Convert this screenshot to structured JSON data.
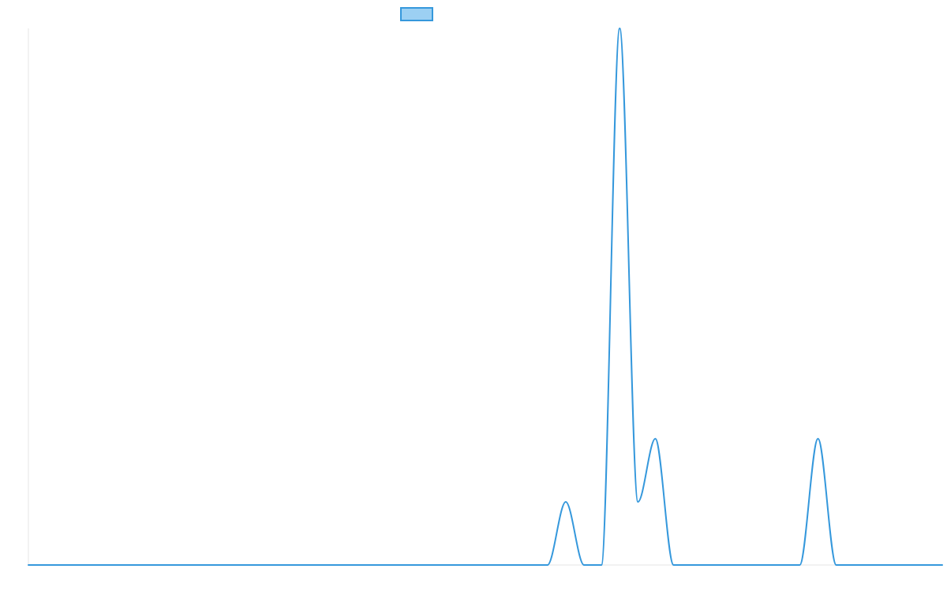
{
  "chart_data": {
    "type": "line",
    "title": "",
    "xlabel": "",
    "ylabel": "",
    "grid": false,
    "legend": {
      "position": "top-center",
      "entries": [
        {
          "label": "",
          "color": "#3598dc",
          "fill": "#9cd0f3"
        }
      ]
    },
    "xlim": [
      0,
      100
    ],
    "ylim": [
      0,
      8.5
    ],
    "series": [
      {
        "color": "#3598dc",
        "curve": "smooth",
        "points": [
          [
            0,
            0
          ],
          [
            10,
            0
          ],
          [
            20,
            0
          ],
          [
            30,
            0
          ],
          [
            40,
            0
          ],
          [
            50,
            0
          ],
          [
            56.8,
            0
          ],
          [
            58.8,
            1
          ],
          [
            60.8,
            0
          ],
          [
            62.7,
            0
          ],
          [
            64.7,
            8.5
          ],
          [
            66.7,
            1
          ],
          [
            68.6,
            2
          ],
          [
            70.6,
            0
          ],
          [
            84.4,
            0
          ],
          [
            86.4,
            2
          ],
          [
            88.4,
            0
          ],
          [
            100,
            0
          ]
        ]
      }
    ]
  }
}
